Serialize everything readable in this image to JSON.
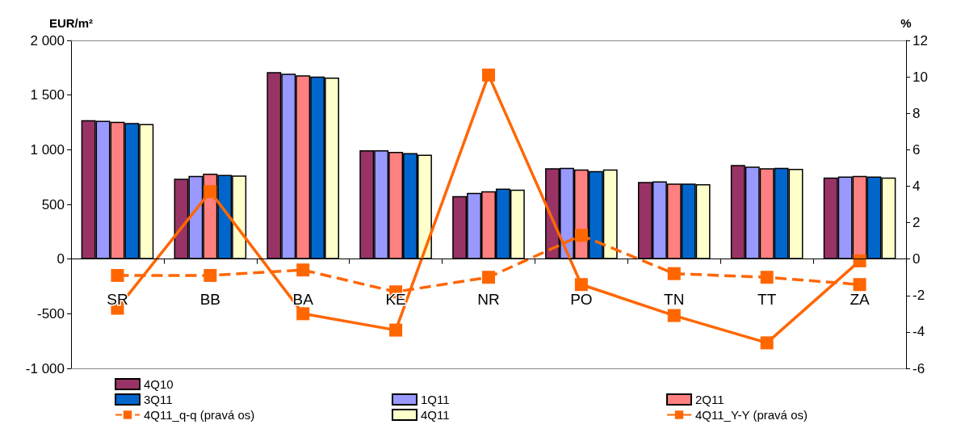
{
  "chart_data": {
    "type": "bar",
    "ylabel": "EUR/m²",
    "y2label": "%",
    "categories": [
      "SR",
      "BB",
      "BA",
      "KE",
      "NR",
      "PO",
      "TN",
      "TT",
      "ZA"
    ],
    "series": [
      {
        "name": "4Q10",
        "color": "#993366",
        "values": [
          1270,
          735,
          1710,
          995,
          575,
          830,
          705,
          860,
          745
        ]
      },
      {
        "name": "1Q11",
        "color": "#9999ff",
        "values": [
          1265,
          760,
          1695,
          995,
          605,
          835,
          710,
          845,
          755
        ]
      },
      {
        "name": "2Q11",
        "color": "#ff8080",
        "values": [
          1255,
          780,
          1680,
          980,
          620,
          820,
          690,
          830,
          760
        ]
      },
      {
        "name": "3Q11",
        "color": "#0066cc",
        "values": [
          1245,
          770,
          1670,
          970,
          645,
          805,
          690,
          835,
          755
        ]
      },
      {
        "name": "4Q11",
        "color": "#ffffcc",
        "values": [
          1235,
          765,
          1660,
          955,
          635,
          820,
          685,
          825,
          745
        ]
      },
      {
        "name": "4Q11_Y-Y (pravá os)",
        "type": "line",
        "axis": "y2",
        "color": "#ff6600",
        "line_style": "solid",
        "values": [
          -2.7,
          3.7,
          -3.0,
          -3.9,
          10.1,
          -1.4,
          -3.1,
          -4.6,
          -0.1
        ]
      },
      {
        "name": "4Q11_q-q (pravá os)",
        "type": "line",
        "axis": "y2",
        "color": "#ff6600",
        "line_style": "dashed",
        "values": [
          -0.9,
          -0.9,
          -0.6,
          -1.8,
          -1.0,
          1.3,
          -0.8,
          -1.0,
          -1.4
        ]
      }
    ],
    "ylim": [
      -1000,
      2000
    ],
    "yticks": [
      {
        "value": -1000,
        "label": "-1 000"
      },
      -500,
      0,
      500,
      {
        "value": 1000,
        "label": "1 000"
      },
      {
        "value": 1500,
        "label": "1 500"
      },
      {
        "value": 2000,
        "label": "2 000"
      }
    ],
    "y2lim": [
      -6,
      12
    ],
    "y2ticks": [
      -6,
      -4,
      -2,
      0,
      2,
      4,
      6,
      8,
      10,
      12
    ],
    "grid": false,
    "legend": "bottom",
    "marker": "square"
  }
}
